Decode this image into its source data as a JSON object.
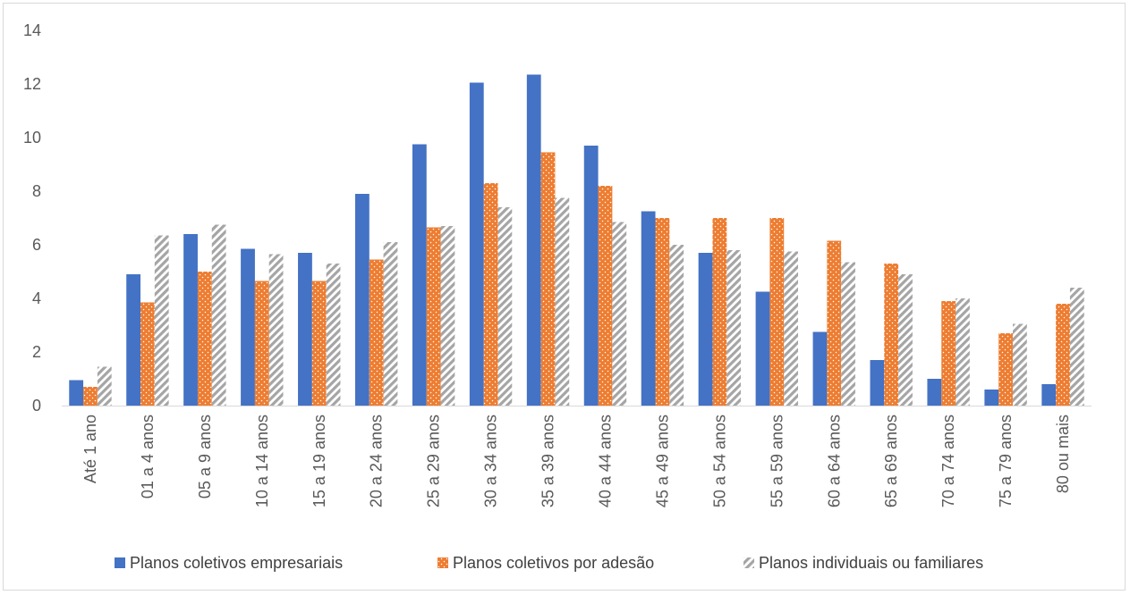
{
  "chart_data": {
    "type": "bar",
    "title": "",
    "xlabel": "",
    "ylabel": "",
    "ylim": [
      0,
      14
    ],
    "yticks": [
      0,
      2,
      4,
      6,
      8,
      10,
      12,
      14
    ],
    "grid": false,
    "legend_position": "bottom",
    "categories": [
      "Até 1 ano",
      "01 a 4 anos",
      "05 a 9 anos",
      "10 a 14 anos",
      "15 a 19 anos",
      "20 a 24 anos",
      "25 a 29 anos",
      "30 a 34 anos",
      "35 a 39 anos",
      "40 a 44 anos",
      "45 a 49 anos",
      "50 a 54 anos",
      "55 a 59 anos",
      "60 a 64 anos",
      "65 a 69 anos",
      "70 a 74 anos",
      "75 a 79 anos",
      "80 ou mais"
    ],
    "series": [
      {
        "name": "Planos coletivos empresariais",
        "color": "#4472c4",
        "pattern": "solid",
        "values": [
          0.95,
          4.9,
          6.4,
          5.85,
          5.7,
          7.9,
          9.75,
          12.05,
          12.35,
          9.7,
          7.25,
          5.7,
          4.25,
          2.75,
          1.7,
          1.0,
          0.6,
          0.8
        ]
      },
      {
        "name": "Planos coletivos por adesão",
        "color": "#ed7d31",
        "pattern": "dotted",
        "values": [
          0.7,
          3.85,
          5.0,
          4.65,
          4.65,
          5.45,
          6.65,
          8.3,
          9.45,
          8.2,
          7.0,
          7.0,
          7.0,
          6.15,
          5.3,
          3.9,
          2.7,
          3.8
        ]
      },
      {
        "name": "Planos individuais ou familiares",
        "color": "#a5a5a5",
        "pattern": "diagonal",
        "values": [
          1.45,
          6.35,
          6.75,
          5.65,
          5.3,
          6.1,
          6.7,
          7.4,
          7.75,
          6.85,
          6.0,
          5.8,
          5.75,
          5.35,
          4.9,
          4.0,
          3.05,
          4.4
        ]
      }
    ]
  }
}
